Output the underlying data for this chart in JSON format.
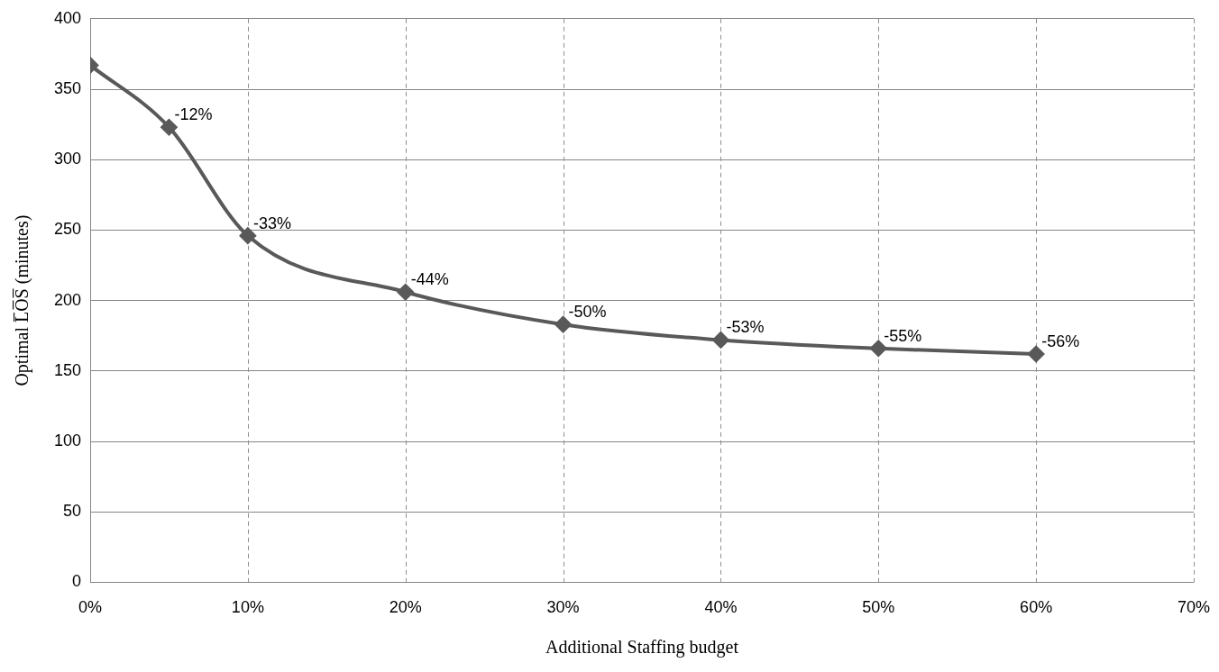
{
  "chart_data": {
    "type": "line",
    "xlabel": "Additional Staffing budget",
    "ylabel": "Optimal L̅O̅S̅ (minutes)",
    "x": [
      0,
      5,
      10,
      20,
      30,
      40,
      50,
      60
    ],
    "series": [
      {
        "color": "#595959",
        "values": [
          367,
          323,
          246,
          206,
          183,
          172,
          166,
          162
        ]
      }
    ],
    "xlim": [
      0,
      70
    ],
    "xticks": [
      {
        "value": 0,
        "label": "0%"
      },
      {
        "value": 10,
        "label": "10%"
      },
      {
        "value": 20,
        "label": "20%"
      },
      {
        "value": 30,
        "label": "30%"
      },
      {
        "value": 40,
        "label": "40%"
      },
      {
        "value": 50,
        "label": "50%"
      },
      {
        "value": 60,
        "label": "60%"
      },
      {
        "value": 70,
        "label": "70%"
      }
    ],
    "ylim": [
      0,
      400
    ],
    "yticks": [
      0,
      50,
      100,
      150,
      200,
      250,
      300,
      350,
      400
    ],
    "grid": true,
    "marker": "diamond",
    "line_style": "solid",
    "legend": false,
    "annotations": [
      {
        "text": "-12%",
        "x": 5,
        "y": 323
      },
      {
        "text": "-33%",
        "x": 10,
        "y": 246
      },
      {
        "text": "-44%",
        "x": 20,
        "y": 206
      },
      {
        "text": "-50%",
        "x": 30,
        "y": 183
      },
      {
        "text": "-53%",
        "x": 40,
        "y": 172
      },
      {
        "text": "-55%",
        "x": 50,
        "y": 166
      },
      {
        "text": "-56%",
        "x": 60,
        "y": 162
      }
    ]
  }
}
